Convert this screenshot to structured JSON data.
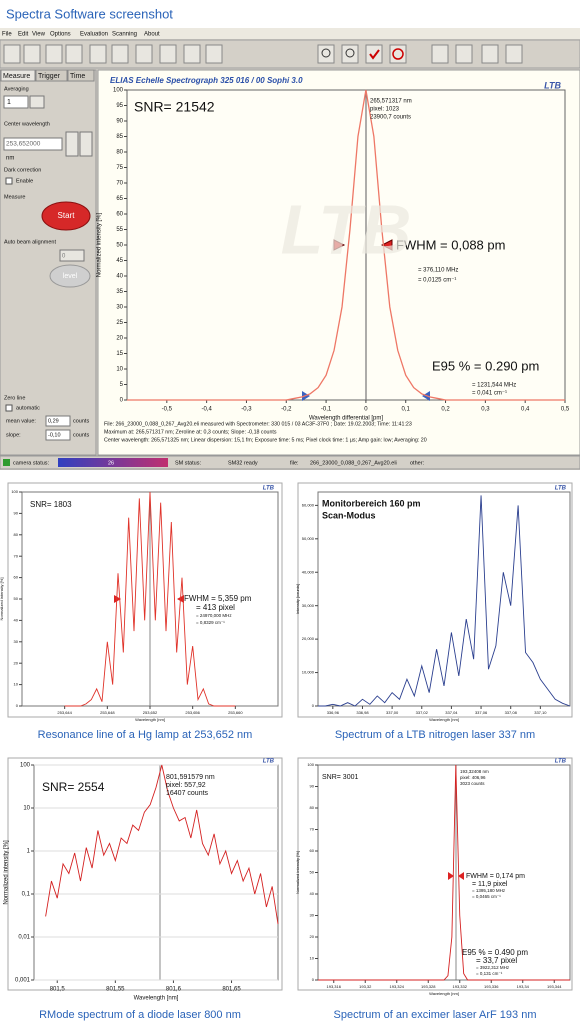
{
  "header": {
    "title": "Spectra Software screenshot"
  },
  "menu": [
    "File",
    "Edit",
    "View",
    "Options",
    "Evaluation",
    "Scanning",
    "About"
  ],
  "panel": {
    "tabs": [
      "Measure",
      "Trigger",
      "Time"
    ],
    "averaging_label": "Averaging",
    "averaging_value": "1",
    "center_label": "Center wavelength",
    "center_value": "253,652000",
    "center_unit": "nm",
    "dark_label": "Dark correction",
    "dark_option": "Enable",
    "measure_label": "Measure",
    "start_button": "Start",
    "beam_label": "Auto beam alignment",
    "beam_value": "0",
    "level_button": "level",
    "zero_label": "Zero line",
    "zero_option": "automatic",
    "mean_label": "mean value:",
    "mean_value": "0,29",
    "mean_unit": "counts",
    "slope_label": "slope:",
    "slope_value": "-0,10",
    "slope_unit": "counts"
  },
  "status": {
    "camera_label": "camera status:",
    "camera_value": "26",
    "sm_label": "SM status:",
    "sm_value": "SM32 ready",
    "file_label": "file:",
    "file_value": "266_23000_0,088_0,267_Avg20.eli",
    "other_label": "other:"
  },
  "chart_data": [
    {
      "type": "line",
      "title": "ELIAS Echelle Spectrograph 325 016 / 00      Sophi 3.0",
      "logo": "LTB",
      "watermark": "LTB",
      "xlabel": "Wavelength differential [pm]",
      "ylabel": "Normalized intensity [%]",
      "color": "#ee7766",
      "x": [
        -0.6,
        -0.2,
        -0.18,
        -0.16,
        -0.14,
        -0.12,
        -0.1,
        -0.08,
        -0.06,
        -0.04,
        -0.02,
        0,
        0.02,
        0.04,
        0.06,
        0.08,
        0.1,
        0.12,
        0.14,
        0.16,
        0.18,
        0.2,
        0.5
      ],
      "values": [
        0,
        0,
        0.5,
        1,
        2,
        4,
        8,
        16,
        30,
        55,
        85,
        100,
        85,
        55,
        30,
        16,
        8,
        4,
        2,
        1,
        0.5,
        0,
        0
      ],
      "xlim": [
        -0.6,
        0.5
      ],
      "ylim": [
        0,
        100
      ],
      "xticks": [
        {
          "value": -0.5,
          "label": "-0,5"
        },
        {
          "value": -0.4,
          "label": "-0,4"
        },
        {
          "value": -0.3,
          "label": "-0,3"
        },
        {
          "value": -0.2,
          "label": "-0,2"
        },
        {
          "value": -0.1,
          "label": "-0,1"
        },
        0,
        {
          "value": 0.1,
          "label": "0,1"
        },
        {
          "value": 0.2,
          "label": "0,2"
        },
        {
          "value": 0.3,
          "label": "0,3"
        },
        {
          "value": 0.4,
          "label": "0,4"
        },
        {
          "value": 0.5,
          "label": "0,5"
        }
      ],
      "yticks": [
        0,
        5,
        10,
        15,
        20,
        25,
        30,
        35,
        40,
        45,
        50,
        55,
        60,
        65,
        70,
        75,
        80,
        85,
        90,
        95,
        100
      ],
      "annotations": [
        "SNR= 21542",
        "265,571317 nm",
        "pixel:  1023",
        "23900,7 counts",
        "FWHM = 0,088 pm",
        "= 376,110 MHz",
        "= 0,0125 cm⁻¹",
        "E95 % =  0.290 pm",
        "= 1231,544 MHz",
        "= 0,041 cm⁻¹"
      ],
      "info": [
        "File: 266_23000_0,088_0,267_Avg20.eli measured with Spectrometer: 330 015 / 03 AC3F-37F0 ; Date: 19.02.2003; Time: 11:41:23",
        "Maximum at: 265,571317 nm; Zeroline at: 0,3 counts; Slope: -0,18 counts",
        "Center wavelength: 265,571325 nm; Linear dispersion: 15,1 fm; Exposure time: 5 ms; Pixel clock time: 1 µs; Amp gain: low; Averaging: 20"
      ]
    },
    {
      "type": "line",
      "caption": "Resonance line of a Hg lamp at 253,652 nm",
      "logo": "LTB",
      "xlabel": "Wavelength [nm]",
      "ylabel": "Normalized intensity [%]",
      "color": "#e0332a",
      "x": [
        253.644,
        253.6445,
        253.645,
        253.6455,
        253.646,
        253.6465,
        253.647,
        253.6475,
        253.648,
        253.6485,
        253.649,
        253.6495,
        253.65,
        253.6505,
        253.651,
        253.6515,
        253.652,
        253.6525,
        253.653,
        253.6535,
        253.654,
        253.6545,
        253.655,
        253.6555,
        253.656,
        253.6565,
        253.657,
        253.6575,
        253.658,
        253.6585,
        253.659,
        253.6595,
        253.66
      ],
      "values": [
        0,
        0,
        0,
        0,
        1,
        3,
        8,
        2,
        30,
        10,
        62,
        25,
        88,
        35,
        97,
        40,
        100,
        40,
        95,
        35,
        86,
        25,
        60,
        10,
        28,
        3,
        8,
        1,
        0,
        0,
        0,
        0,
        0
      ],
      "xlim": [
        253.64,
        253.664
      ],
      "ylim": [
        0,
        100
      ],
      "xticks": [
        {
          "value": 253.644,
          "label": "253,644"
        },
        {
          "value": 253.648,
          "label": "253,648"
        },
        {
          "value": 253.652,
          "label": "253,652"
        },
        {
          "value": 253.656,
          "label": "253,656"
        },
        {
          "value": 253.66,
          "label": "253,660"
        }
      ],
      "yticks": [
        0,
        10,
        20,
        30,
        40,
        50,
        60,
        70,
        80,
        90,
        100
      ],
      "annotations": [
        "SNR= 1803",
        "FWHM = 5,359 pm",
        "= 413 pixel",
        "= 24970,000 MHz",
        "= 0,8329 cm⁻¹"
      ]
    },
    {
      "type": "line",
      "caption": "Spectrum of a LTB nitrogen laser 337 nm",
      "logo": "LTB",
      "xlabel": "Wavelength [nm]",
      "ylabel": "Intensity [counts]",
      "color": "#2b3f8f",
      "x": [
        336.95,
        336.955,
        336.96,
        336.965,
        336.97,
        336.975,
        336.98,
        336.985,
        336.99,
        336.995,
        337,
        337.005,
        337.01,
        337.015,
        337.02,
        337.025,
        337.03,
        337.035,
        337.04,
        337.045,
        337.05,
        337.055,
        337.06,
        337.065,
        337.07,
        337.075,
        337.08,
        337.085,
        337.09,
        337.095,
        337.1,
        337.105,
        337.11,
        337.115,
        337.12
      ],
      "values": [
        0,
        0,
        500,
        0,
        1000,
        0,
        2000,
        500,
        3000,
        1000,
        4000,
        2000,
        8000,
        3000,
        12000,
        4000,
        17000,
        6000,
        22000,
        9000,
        26000,
        14000,
        63000,
        11000,
        18000,
        40000,
        30000,
        60000,
        16000,
        13000,
        8000,
        5000,
        2000,
        800,
        0
      ],
      "xlim": [
        336.95,
        337.12
      ],
      "ylim": [
        0,
        64000
      ],
      "xticks": [
        {
          "value": 336.96,
          "label": "336,96"
        },
        {
          "value": 336.98,
          "label": "336,98"
        },
        {
          "value": 337,
          "label": "337,00"
        },
        {
          "value": 337.02,
          "label": "337,02"
        },
        {
          "value": 337.04,
          "label": "337,04"
        },
        {
          "value": 337.06,
          "label": "337,06"
        },
        {
          "value": 337.08,
          "label": "337,08"
        },
        {
          "value": 337.1,
          "label": "337,10"
        }
      ],
      "yticks": [
        0,
        {
          "value": 10000,
          "label": "10,000"
        },
        {
          "value": 20000,
          "label": "20,000"
        },
        {
          "value": 30000,
          "label": "30,000"
        },
        {
          "value": 40000,
          "label": "40,000"
        },
        {
          "value": 50000,
          "label": "50,000"
        },
        {
          "value": 60000,
          "label": "60,000"
        }
      ],
      "annotations": [
        "Monitorbereich 160 pm",
        "Scan-Modus"
      ]
    },
    {
      "type": "line",
      "caption": "RMode spectrum of a diode laser 800 nm",
      "logo": "LTB",
      "xlabel": "Wavelength [nm]",
      "ylabel": "Normalized intensity [%]",
      "color": "#d42020",
      "log_y": true,
      "x": [
        801.49,
        801.495,
        801.5,
        801.505,
        801.51,
        801.515,
        801.52,
        801.525,
        801.53,
        801.535,
        801.54,
        801.545,
        801.55,
        801.555,
        801.56,
        801.565,
        801.57,
        801.575,
        801.58,
        801.585,
        801.59,
        801.595,
        801.6,
        801.605,
        801.61,
        801.615,
        801.62,
        801.625,
        801.63,
        801.635,
        801.64,
        801.645,
        801.65,
        801.655,
        801.66,
        801.665,
        801.67,
        801.675,
        801.68,
        801.685,
        801.69
      ],
      "values": [
        0.03,
        0.2,
        0.08,
        0.5,
        0.3,
        0.9,
        0.2,
        1.2,
        0.4,
        3,
        0.8,
        1.5,
        0.6,
        2,
        1.5,
        4,
        3,
        8,
        12,
        30,
        100,
        25,
        10,
        5,
        6,
        2,
        9,
        1.5,
        0.8,
        2.5,
        0.5,
        1,
        0.3,
        0.6,
        0.2,
        0.4,
        0.1,
        0.3,
        0.05,
        0.15,
        0.02
      ],
      "xlim": [
        801.48,
        801.69
      ],
      "ylim": [
        0.001,
        100
      ],
      "xticks": [
        {
          "value": 801.5,
          "label": "801,5"
        },
        {
          "value": 801.55,
          "label": "801,55"
        },
        {
          "value": 801.6,
          "label": "801,6"
        },
        {
          "value": 801.65,
          "label": "801,65"
        }
      ],
      "yticks": [
        {
          "value": 0.001,
          "label": "0,001"
        },
        {
          "value": 0.01,
          "label": "0,01"
        },
        {
          "value": 0.1,
          "label": "0,1"
        },
        1,
        10,
        100
      ],
      "annotations": [
        "SNR= 2554",
        "801,591579 nm",
        "pixel:  557,92",
        "16407 counts"
      ]
    },
    {
      "type": "line",
      "caption": "Spectrum of an excimer laser ArF 193 nm",
      "logo": "LTB",
      "xlabel": "Wavelength [nm]",
      "ylabel": "Normalized intensity [%]",
      "color": "#d42020",
      "x": [
        193.314,
        193.33,
        193.3305,
        193.331,
        193.3315,
        193.332,
        193.3325,
        193.333,
        193.346
      ],
      "values": [
        0,
        0,
        2,
        20,
        100,
        30,
        3,
        0,
        0
      ],
      "xlim": [
        193.314,
        193.346
      ],
      "ylim": [
        0,
        100
      ],
      "xticks": [
        {
          "value": 193.316,
          "label": "193,316"
        },
        {
          "value": 193.32,
          "label": "193,32"
        },
        {
          "value": 193.324,
          "label": "193,324"
        },
        {
          "value": 193.328,
          "label": "193,328"
        },
        {
          "value": 193.332,
          "label": "193,332"
        },
        {
          "value": 193.336,
          "label": "193,336"
        },
        {
          "value": 193.34,
          "label": "193,34"
        },
        {
          "value": 193.344,
          "label": "193,344"
        }
      ],
      "yticks": [
        0,
        10,
        20,
        30,
        40,
        50,
        60,
        70,
        80,
        90,
        100
      ],
      "annotations": [
        "SNR= 3001",
        "193,32408 nm",
        "pixel:  406,96",
        "3023 counts",
        "FWHM = 0,174 pm",
        "= 11,9 pixel",
        "= 1395,180 MHz",
        "= 0,0465 cm⁻¹",
        "E95 % =  0.490 pm",
        "= 33,7 pixel",
        "= 3922,312 MHz",
        "= 0,131 cm⁻¹"
      ]
    }
  ]
}
